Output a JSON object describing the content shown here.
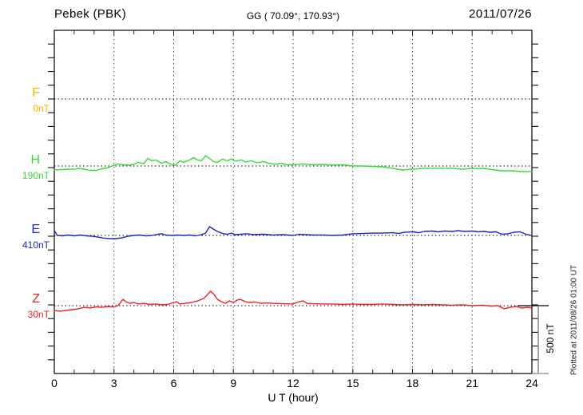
{
  "header": {
    "station": "Pebek (PBK)",
    "coords": "GG ( 70.09°, 170.93°)",
    "date": "2011/07/26"
  },
  "axis": {
    "xlabel": "U T (hour)",
    "xticks": [
      0,
      3,
      6,
      9,
      12,
      15,
      18,
      21,
      24
    ],
    "xmin": 0,
    "xmax": 24
  },
  "channels": [
    {
      "letter": "F",
      "baseline_label": "0nT",
      "color": "#FFB300"
    },
    {
      "letter": "H",
      "baseline_label": "190nT",
      "color": "#33DD33"
    },
    {
      "letter": "E",
      "baseline_label": "410nT",
      "color": "#2222CC"
    },
    {
      "letter": "Z",
      "baseline_label": "30nT",
      "color": "#EE2222"
    }
  ],
  "scalebar": {
    "label": "500 nT",
    "nT": 500
  },
  "footer": {
    "plotted_at": "Plotted at 2011/08/26 01:00 UT"
  },
  "chart_data": {
    "type": "line",
    "title": "Pebek (PBK) magnetogram 2011/07/26",
    "xlabel": "U T (hour)",
    "x_range": [
      0,
      24
    ],
    "x_major_tick": 3,
    "x_minor_tick": 1,
    "scale_nT_per_division": 500,
    "y_tick_nT": 100,
    "grid": "dotted",
    "series": [
      {
        "name": "F",
        "baseline_nT": 0,
        "color": "#FFB300",
        "points": []
      },
      {
        "name": "H",
        "baseline_nT": 190,
        "color": "#33DD33",
        "points": [
          [
            0,
            -29
          ],
          [
            0.3,
            -26
          ],
          [
            0.7,
            -23
          ],
          [
            1.0,
            -23
          ],
          [
            1.2,
            -17
          ],
          [
            1.5,
            -23
          ],
          [
            1.8,
            -32
          ],
          [
            2.1,
            -32
          ],
          [
            2.4,
            -20
          ],
          [
            2.7,
            -12
          ],
          [
            2.9,
            0
          ],
          [
            3.2,
            15
          ],
          [
            3.4,
            9
          ],
          [
            3.7,
            6
          ],
          [
            4.0,
            12
          ],
          [
            4.2,
            26
          ],
          [
            4.5,
            17
          ],
          [
            4.7,
            55
          ],
          [
            4.9,
            38
          ],
          [
            5.1,
            44
          ],
          [
            5.4,
            20
          ],
          [
            5.6,
            32
          ],
          [
            5.9,
            9
          ],
          [
            6.1,
            6
          ],
          [
            6.3,
            38
          ],
          [
            6.5,
            26
          ],
          [
            6.8,
            44
          ],
          [
            7.0,
            61
          ],
          [
            7.2,
            44
          ],
          [
            7.4,
            38
          ],
          [
            7.6,
            75
          ],
          [
            7.8,
            55
          ],
          [
            8.0,
            32
          ],
          [
            8.2,
            26
          ],
          [
            8.45,
            50
          ],
          [
            8.7,
            38
          ],
          [
            8.9,
            52
          ],
          [
            9.1,
            35
          ],
          [
            9.4,
            44
          ],
          [
            9.6,
            29
          ],
          [
            9.9,
            38
          ],
          [
            10.2,
            23
          ],
          [
            10.5,
            32
          ],
          [
            10.8,
            20
          ],
          [
            11.1,
            12
          ],
          [
            11.4,
            20
          ],
          [
            11.7,
            9
          ],
          [
            12,
            9
          ],
          [
            12.5,
            15
          ],
          [
            13,
            9
          ],
          [
            13.5,
            12
          ],
          [
            14,
            6
          ],
          [
            14.5,
            9
          ],
          [
            15,
            0
          ],
          [
            15.5,
            0
          ],
          [
            16,
            -3
          ],
          [
            16.5,
            -6
          ],
          [
            17,
            -17
          ],
          [
            17.5,
            -29
          ],
          [
            18,
            -23
          ],
          [
            18.5,
            -17
          ],
          [
            19,
            -17
          ],
          [
            19.5,
            -17
          ],
          [
            20,
            -17
          ],
          [
            20.5,
            -23
          ],
          [
            21,
            -17
          ],
          [
            21.3,
            -20
          ],
          [
            21.6,
            -17
          ],
          [
            22,
            -26
          ],
          [
            22.5,
            -35
          ],
          [
            23,
            -35
          ],
          [
            23.5,
            -41
          ],
          [
            24,
            -41
          ]
        ]
      },
      {
        "name": "E",
        "baseline_nT": 410,
        "color": "#2222CC",
        "points": [
          [
            0,
            35
          ],
          [
            0.15,
            0
          ],
          [
            0.4,
            -3
          ],
          [
            0.7,
            3
          ],
          [
            1.0,
            -3
          ],
          [
            1.3,
            3
          ],
          [
            1.6,
            -3
          ],
          [
            1.9,
            -6
          ],
          [
            2.2,
            -12
          ],
          [
            2.5,
            -20
          ],
          [
            2.8,
            -23
          ],
          [
            3.1,
            -23
          ],
          [
            3.4,
            -17
          ],
          [
            3.7,
            -6
          ],
          [
            4.0,
            0
          ],
          [
            4.3,
            3
          ],
          [
            4.6,
            -3
          ],
          [
            4.9,
            0
          ],
          [
            5.2,
            9
          ],
          [
            5.4,
            12
          ],
          [
            5.6,
            3
          ],
          [
            5.9,
            0
          ],
          [
            6.2,
            3
          ],
          [
            6.5,
            0
          ],
          [
            6.8,
            3
          ],
          [
            7.1,
            -3
          ],
          [
            7.4,
            6
          ],
          [
            7.6,
            17
          ],
          [
            7.8,
            64
          ],
          [
            8.0,
            46
          ],
          [
            8.2,
            29
          ],
          [
            8.5,
            12
          ],
          [
            8.7,
            9
          ],
          [
            8.9,
            17
          ],
          [
            9.1,
            6
          ],
          [
            9.4,
            9
          ],
          [
            9.7,
            12
          ],
          [
            10,
            6
          ],
          [
            10.5,
            9
          ],
          [
            11,
            3
          ],
          [
            11.5,
            6
          ],
          [
            12,
            0
          ],
          [
            12.3,
            9
          ],
          [
            12.6,
            6
          ],
          [
            13,
            3
          ],
          [
            13.5,
            3
          ],
          [
            14,
            0
          ],
          [
            14.5,
            3
          ],
          [
            15,
            12
          ],
          [
            15.5,
            14
          ],
          [
            16,
            17
          ],
          [
            16.5,
            17
          ],
          [
            17,
            20
          ],
          [
            17.3,
            14
          ],
          [
            17.6,
            23
          ],
          [
            18,
            26
          ],
          [
            18.3,
            20
          ],
          [
            18.6,
            29
          ],
          [
            19,
            32
          ],
          [
            19.3,
            26
          ],
          [
            19.6,
            32
          ],
          [
            20,
            29
          ],
          [
            20.3,
            35
          ],
          [
            20.6,
            29
          ],
          [
            21,
            32
          ],
          [
            21.3,
            26
          ],
          [
            21.6,
            29
          ],
          [
            21.9,
            23
          ],
          [
            22.2,
            26
          ],
          [
            22.5,
            9
          ],
          [
            22.8,
            12
          ],
          [
            23.1,
            23
          ],
          [
            23.4,
            26
          ],
          [
            23.7,
            9
          ],
          [
            24,
            0
          ]
        ]
      },
      {
        "name": "Z",
        "baseline_nT": 30,
        "color": "#EE2222",
        "points": [
          [
            0,
            -35
          ],
          [
            0.3,
            -40
          ],
          [
            0.6,
            -35
          ],
          [
            0.9,
            -29
          ],
          [
            1.2,
            -23
          ],
          [
            1.5,
            -12
          ],
          [
            1.8,
            -17
          ],
          [
            2.1,
            -9
          ],
          [
            2.4,
            -12
          ],
          [
            2.7,
            -6
          ],
          [
            3.0,
            -9
          ],
          [
            3.2,
            0
          ],
          [
            3.45,
            46
          ],
          [
            3.6,
            29
          ],
          [
            3.8,
            17
          ],
          [
            4.0,
            23
          ],
          [
            4.2,
            12
          ],
          [
            4.5,
            17
          ],
          [
            4.8,
            9
          ],
          [
            5.1,
            12
          ],
          [
            5.4,
            6
          ],
          [
            5.7,
            9
          ],
          [
            6.0,
            23
          ],
          [
            6.15,
            29
          ],
          [
            6.3,
            12
          ],
          [
            6.6,
            17
          ],
          [
            6.9,
            23
          ],
          [
            7.2,
            35
          ],
          [
            7.5,
            52
          ],
          [
            7.7,
            81
          ],
          [
            7.85,
            106
          ],
          [
            8.0,
            87
          ],
          [
            8.2,
            46
          ],
          [
            8.4,
            29
          ],
          [
            8.6,
            17
          ],
          [
            8.8,
            35
          ],
          [
            9.0,
            23
          ],
          [
            9.2,
            41
          ],
          [
            9.35,
            46
          ],
          [
            9.6,
            29
          ],
          [
            9.8,
            23
          ],
          [
            10.1,
            26
          ],
          [
            10.4,
            17
          ],
          [
            10.7,
            20
          ],
          [
            11,
            17
          ],
          [
            11.5,
            14
          ],
          [
            12,
            12
          ],
          [
            12.3,
            29
          ],
          [
            12.5,
            35
          ],
          [
            12.7,
            17
          ],
          [
            13,
            14
          ],
          [
            13.5,
            12
          ],
          [
            14,
            12
          ],
          [
            14.5,
            9
          ],
          [
            15,
            12
          ],
          [
            15.5,
            9
          ],
          [
            16,
            9
          ],
          [
            16.5,
            12
          ],
          [
            17,
            9
          ],
          [
            17.5,
            6
          ],
          [
            18,
            9
          ],
          [
            18.5,
            6
          ],
          [
            19,
            9
          ],
          [
            19.5,
            6
          ],
          [
            20,
            3
          ],
          [
            20.5,
            6
          ],
          [
            21,
            0
          ],
          [
            21.5,
            3
          ],
          [
            22,
            -3
          ],
          [
            22.3,
            0
          ],
          [
            22.6,
            -23
          ],
          [
            22.9,
            -12
          ],
          [
            23.2,
            -6
          ],
          [
            23.5,
            -17
          ],
          [
            23.8,
            -12
          ],
          [
            24,
            -17
          ]
        ]
      }
    ]
  }
}
